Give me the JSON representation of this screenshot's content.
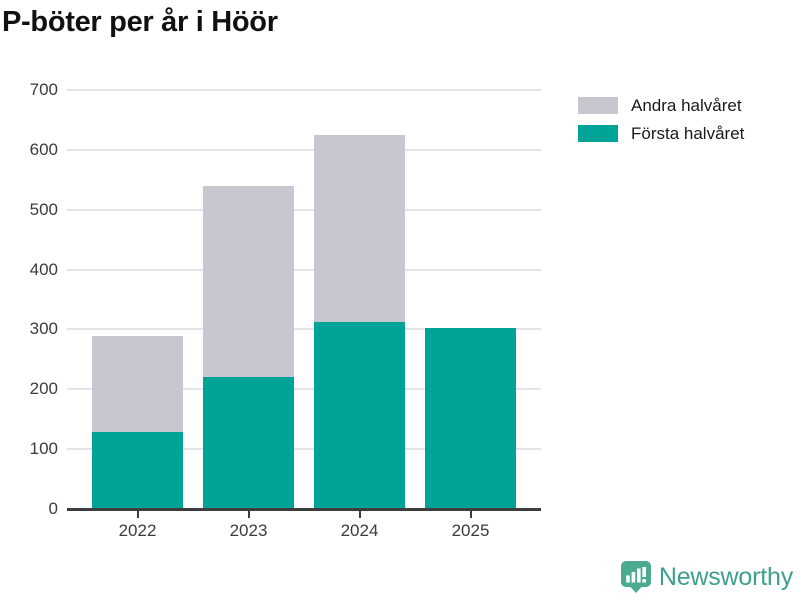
{
  "title": "P-böter per år i Höör",
  "legend": {
    "items": [
      {
        "label": "Andra halvåret",
        "color": "#c8c6ce"
      },
      {
        "label": "Första halvåret",
        "color": "#00a397"
      }
    ]
  },
  "chart_data": {
    "type": "bar",
    "stacked": true,
    "title": "P-böter per år i Höör",
    "categories": [
      "2022",
      "2023",
      "2024",
      "2025"
    ],
    "series": [
      {
        "name": "Första halvåret",
        "color": "#00a397",
        "values": [
          129,
          220,
          313,
          302
        ]
      },
      {
        "name": "Andra halvåret",
        "color": "#c8c6ce",
        "values": [
          160,
          320,
          312,
          0
        ]
      }
    ],
    "totals": [
      289,
      540,
      625,
      302
    ],
    "xlabel": "",
    "ylabel": "",
    "ylim": [
      0,
      700
    ],
    "yticks": [
      0,
      100,
      200,
      300,
      400,
      500,
      600,
      700
    ],
    "grid": true,
    "legend_position": "top-right"
  },
  "branding": {
    "logo_text": "Newsworthy",
    "logo_icon": "bar-chart-speech-bubble-icon",
    "logo_color": "#3d9f8c",
    "logo_icon_color": "#4caa8f"
  }
}
